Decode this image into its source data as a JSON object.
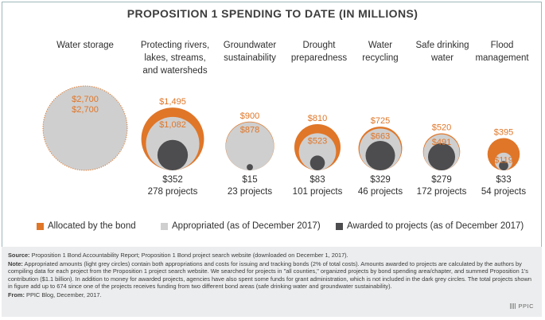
{
  "title": "PROPOSITION 1 SPENDING TO DATE (IN MILLIONS)",
  "colors": {
    "allocated": "#e07628",
    "appropriated": "#cfcfcf",
    "awarded": "#4d4d4f",
    "footer_bg": "#ecedee",
    "frame": "#9fb7bb"
  },
  "chart_data": {
    "type": "bubble",
    "title": "PROPOSITION 1 SPENDING TO DATE (IN MILLIONS)",
    "unit": "millions of dollars",
    "series_names": [
      "Allocated by the bond",
      "Appropriated (as of December 2017)",
      "Awarded to projects (as of December 2017)"
    ],
    "categories": [
      {
        "name": "Water storage",
        "allocated": 2700,
        "appropriated": 2700,
        "awarded": null,
        "projects": null,
        "allocated_label": "$2,700",
        "appropriated_label": "$2,700",
        "awarded_label": "",
        "projects_label": ""
      },
      {
        "name": "Protecting rivers,\nlakes, streams,\nand watersheds",
        "allocated": 1495,
        "appropriated": 1082,
        "awarded": 352,
        "projects": 278,
        "allocated_label": "$1,495",
        "appropriated_label": "$1,082",
        "awarded_label": "$352",
        "projects_label": "278 projects"
      },
      {
        "name": "Groundwater\nsustainability",
        "allocated": 900,
        "appropriated": 878,
        "awarded": 15,
        "projects": 23,
        "allocated_label": "$900",
        "appropriated_label": "$878",
        "awarded_label": "$15",
        "projects_label": "23 projects"
      },
      {
        "name": "Drought\npreparedness",
        "allocated": 810,
        "appropriated": 523,
        "awarded": 83,
        "projects": 101,
        "allocated_label": "$810",
        "appropriated_label": "$523",
        "awarded_label": "$83",
        "projects_label": "101 projects"
      },
      {
        "name": "Water\nrecycling",
        "allocated": 725,
        "appropriated": 663,
        "awarded": 329,
        "projects": 46,
        "allocated_label": "$725",
        "appropriated_label": "$663",
        "awarded_label": "$329",
        "projects_label": "46 projects"
      },
      {
        "name": "Safe drinking\nwater",
        "allocated": 520,
        "appropriated": 491,
        "awarded": 279,
        "projects": 172,
        "allocated_label": "$520",
        "appropriated_label": "$491",
        "awarded_label": "$279",
        "projects_label": "172 projects"
      },
      {
        "name": "Flood\nmanagement",
        "allocated": 395,
        "appropriated": 119,
        "awarded": 33,
        "projects": 54,
        "allocated_label": "$395",
        "appropriated_label": "$119",
        "awarded_label": "$33",
        "projects_label": "54 projects"
      }
    ]
  },
  "legend": {
    "allocated": "Allocated by the bond",
    "appropriated": "Appropriated (as of December 2017)",
    "awarded": "Awarded to projects (as of December 2017)"
  },
  "footer": {
    "source_label": "Source:",
    "source_text": "Proposition 1 Bond Accountability Report; Proposition 1 Bond project search website  (downloaded on December 1, 2017).",
    "note_label": "Note:",
    "note_text": "Appropriated amounts (light grey circles) contain both appropriations and costs for issuing and tracking bonds (2% of total costs). Amounts awarded to projects are calculated by the authors by compiling data for each project from the Proposition 1 project search website. We searched for projects in \"all counties,\" organized projects by bond spending area/chapter, and summed Proposition 1's contribution ($1.1 billion). In addition to money for awarded projects, agencies have also spent some funds for grant administration, which is not included in the dark grey circles. The total projects shown in figure add up to 674 since one of the projects receives funding from two different bond areas (safe drinking water and groundwater sustainability).",
    "from_label": "From:",
    "from_text": "PPIC Blog, December, 2017.",
    "logo": "PPIC"
  }
}
